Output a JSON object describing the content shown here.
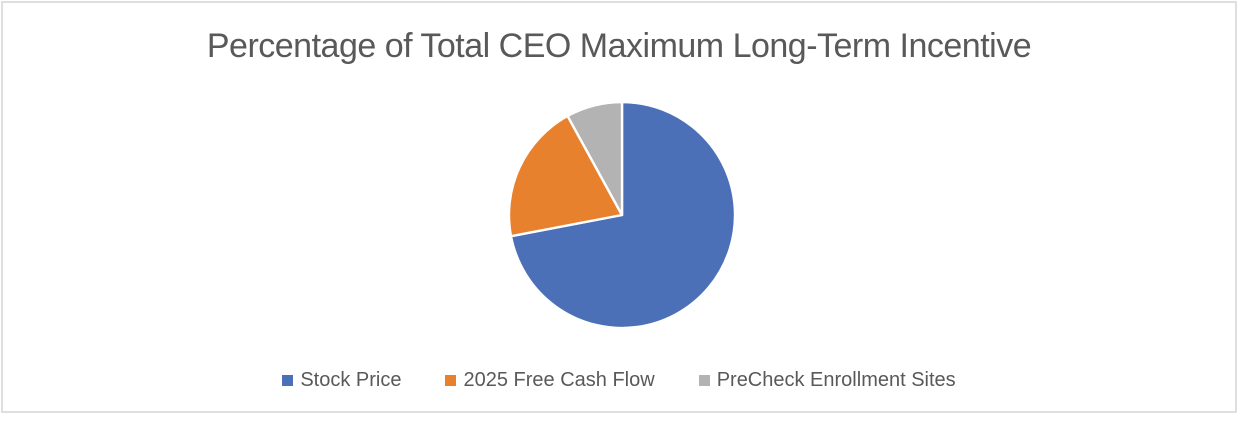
{
  "chart_data": {
    "type": "pie",
    "title": "Percentage of Total CEO Maximum Long-Term Incentive",
    "series": [
      {
        "name": "Stock Price",
        "value": 72,
        "color": "#4C70B8"
      },
      {
        "name": "2025 Free Cash Flow",
        "value": 20,
        "color": "#E8812D"
      },
      {
        "name": "PreCheck Enrollment Sites",
        "value": 8,
        "color": "#B3B3B3"
      }
    ],
    "values_unit": "percent_of_total",
    "start_angle_deg": 0,
    "direction": "clockwise",
    "legend_position": "bottom",
    "slice_border_color": "#FFFFFF"
  },
  "colors": {
    "title_text": "#595959",
    "legend_text": "#595959",
    "frame_border": "#DFDFE1",
    "background": "#FFFFFF"
  }
}
